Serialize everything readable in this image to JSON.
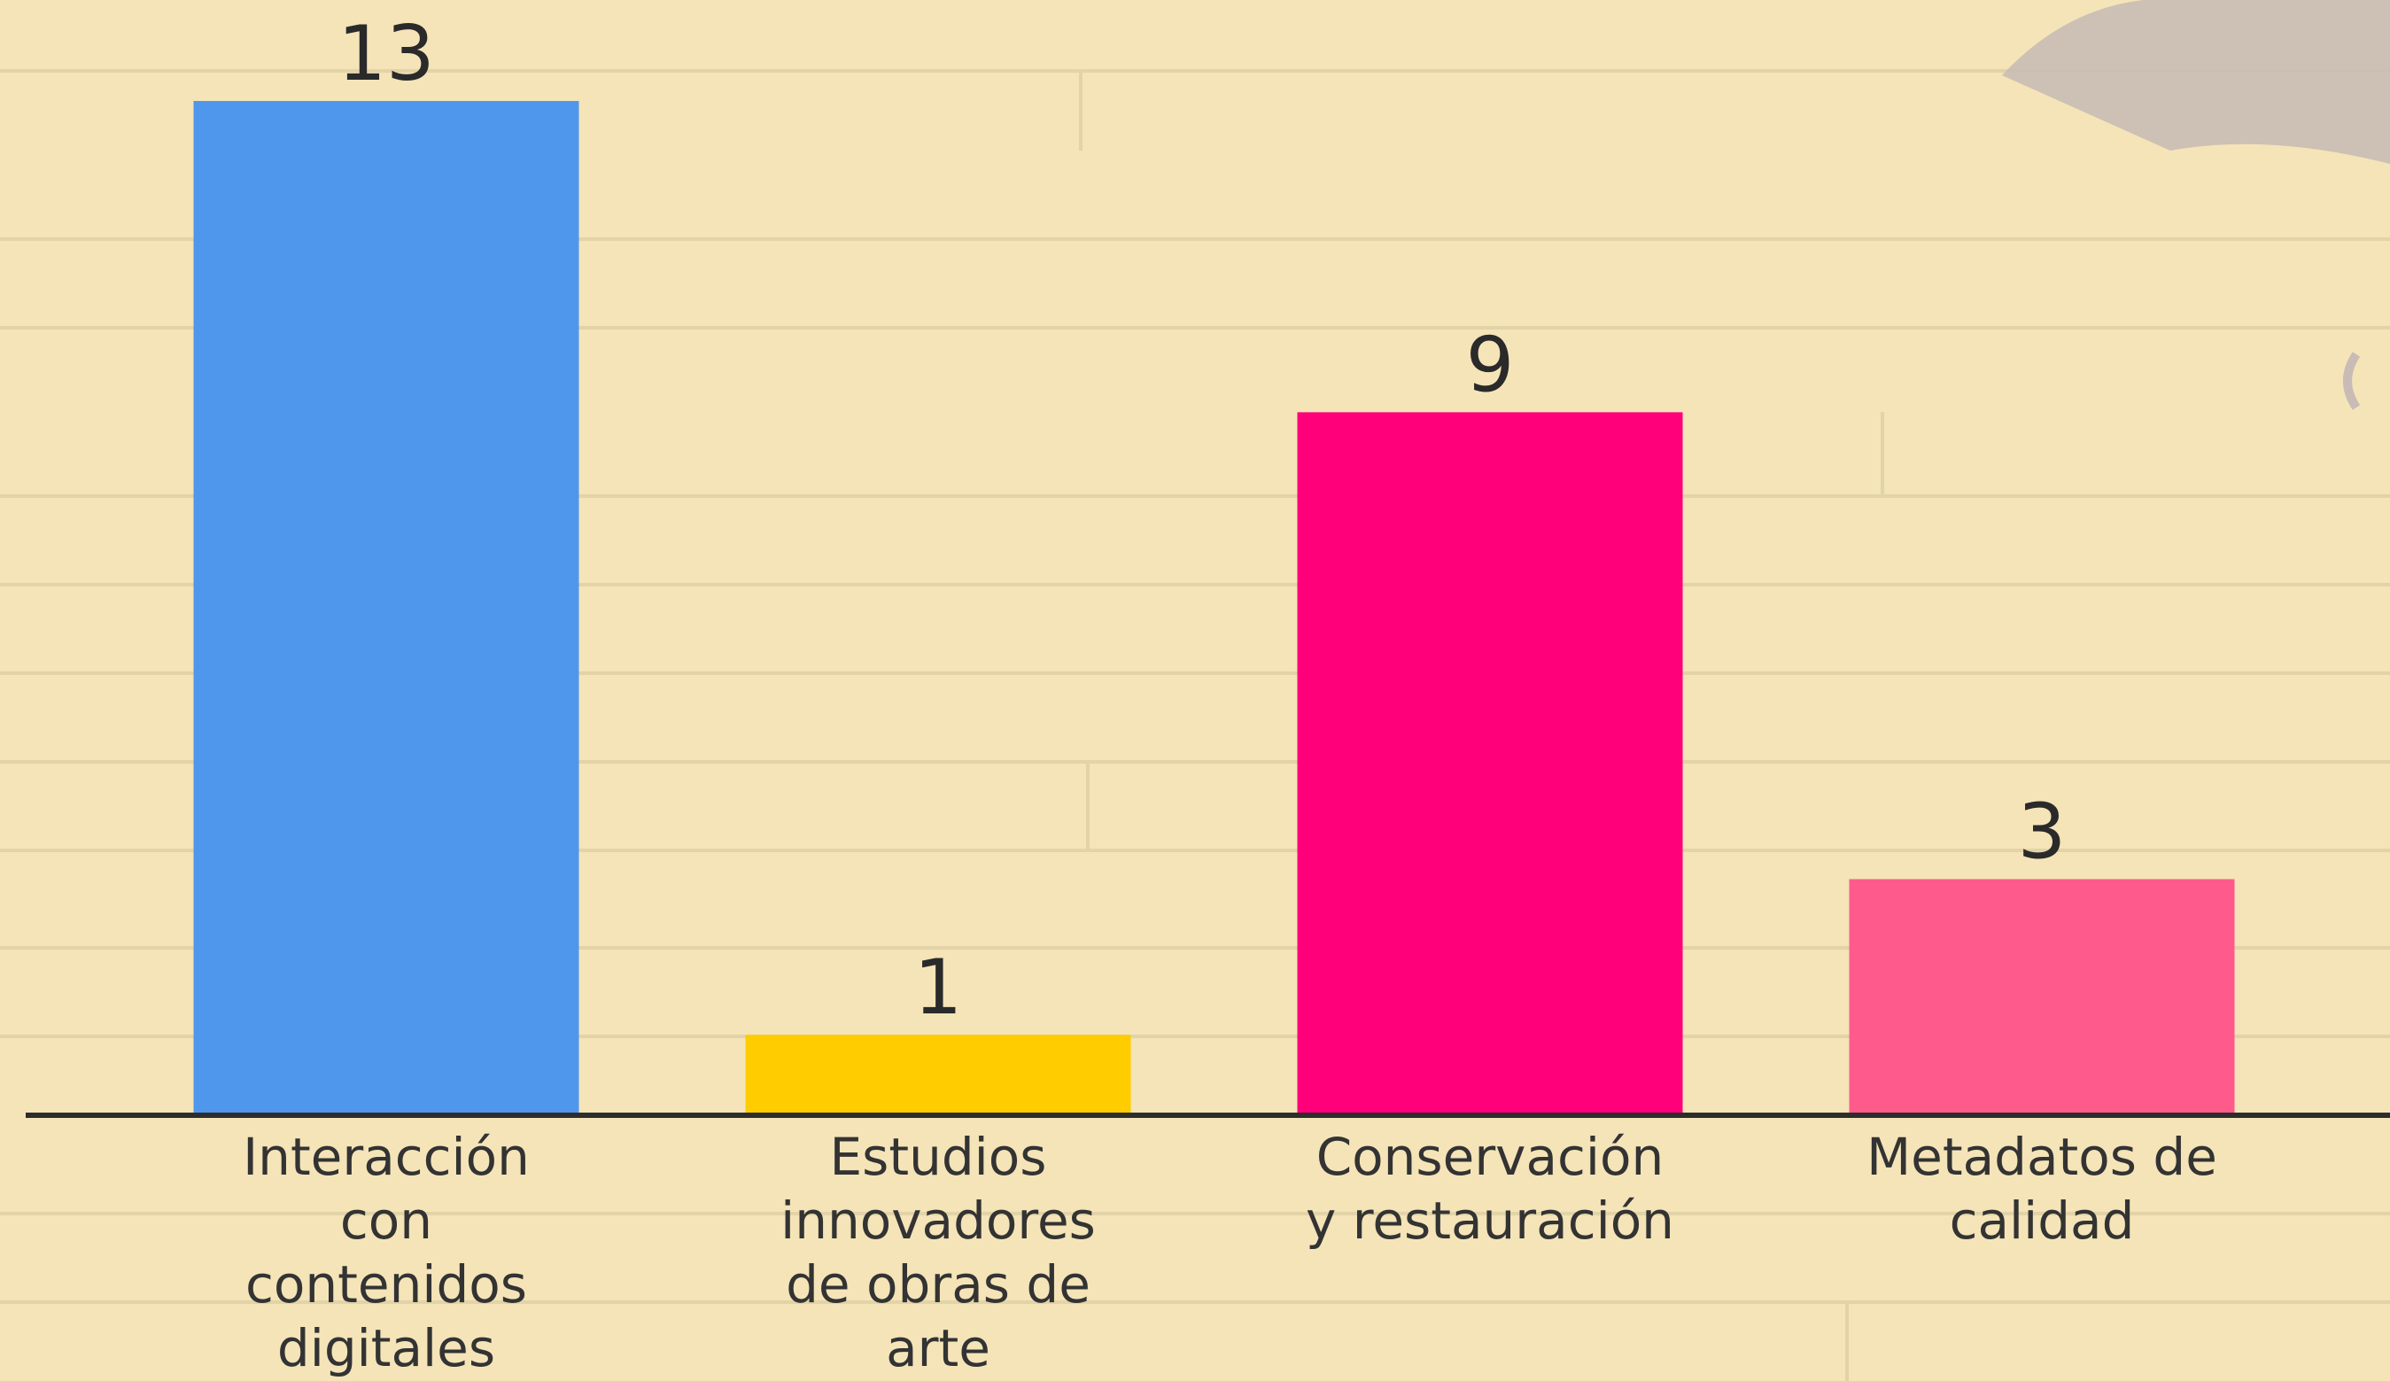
{
  "chart_data": {
    "type": "bar",
    "categories": [
      "Interacción con contenidos digitales",
      "Estudios innovadores de obras de arte",
      "Conservación y restauración",
      "Metadatos de calidad"
    ],
    "values": [
      13,
      1,
      9,
      3
    ],
    "colors": [
      "#4f97ec",
      "#ffcc00",
      "#ff007a",
      "#ff5a8c"
    ]
  }
}
